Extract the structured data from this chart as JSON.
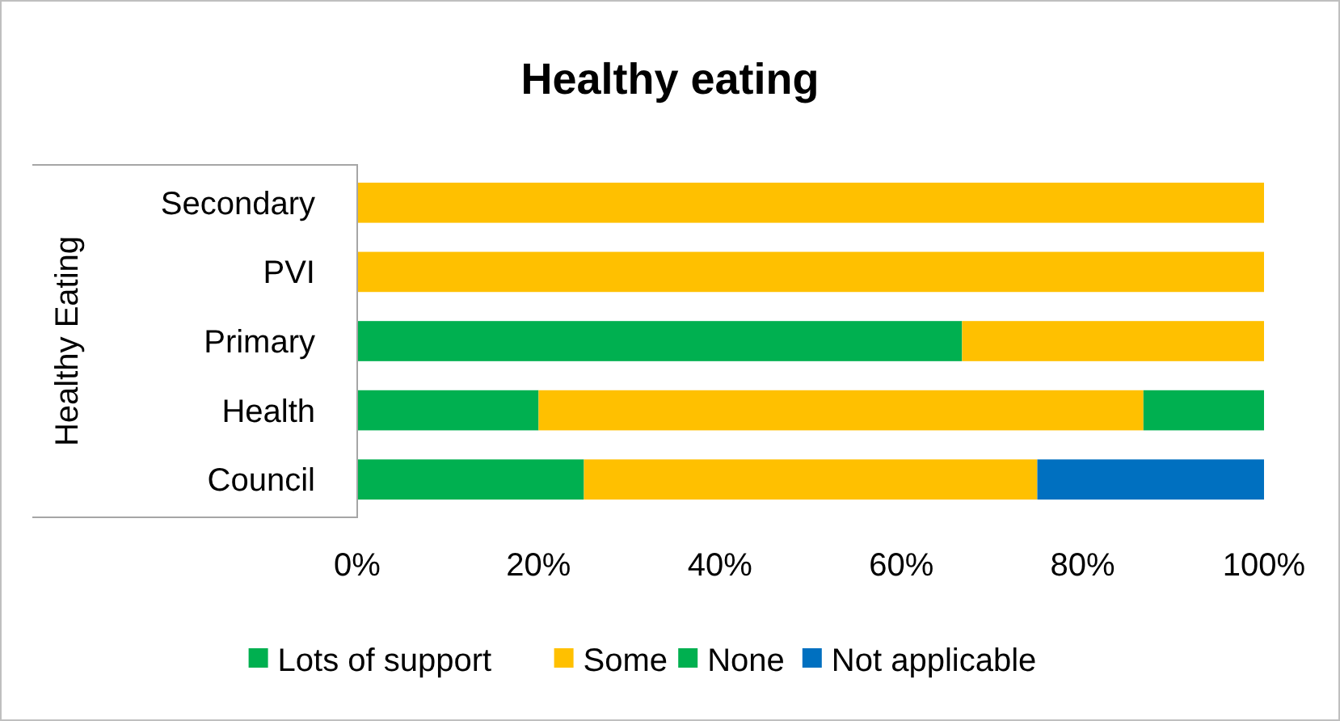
{
  "chart_data": {
    "type": "bar",
    "orientation": "horizontal",
    "stacked": true,
    "title": "Healthy eating",
    "ylabel": "Healthy Eating",
    "categories": [
      "Secondary",
      "PVI",
      "Primary",
      "Health",
      "Council"
    ],
    "series": [
      {
        "name": "Lots of support",
        "color": "#00b050",
        "values": [
          0,
          0,
          66.7,
          20,
          25
        ]
      },
      {
        "name": "Some",
        "color": "#ffc000",
        "values": [
          100,
          100,
          33.3,
          66.7,
          50
        ]
      },
      {
        "name": "None",
        "color": "#00b050",
        "values": [
          0,
          0,
          0,
          13.3,
          0
        ]
      },
      {
        "name": "Not applicable",
        "color": "#0070c0",
        "values": [
          0,
          0,
          0,
          0,
          25
        ]
      }
    ],
    "xlim": [
      0,
      100
    ],
    "xticks": [
      {
        "value": 0,
        "label": "0%"
      },
      {
        "value": 20,
        "label": "20%"
      },
      {
        "value": 40,
        "label": "40%"
      },
      {
        "value": 60,
        "label": "60%"
      },
      {
        "value": 80,
        "label": "80%"
      },
      {
        "value": 100,
        "label": "100%"
      }
    ],
    "grid": false,
    "legend": "bottom"
  }
}
